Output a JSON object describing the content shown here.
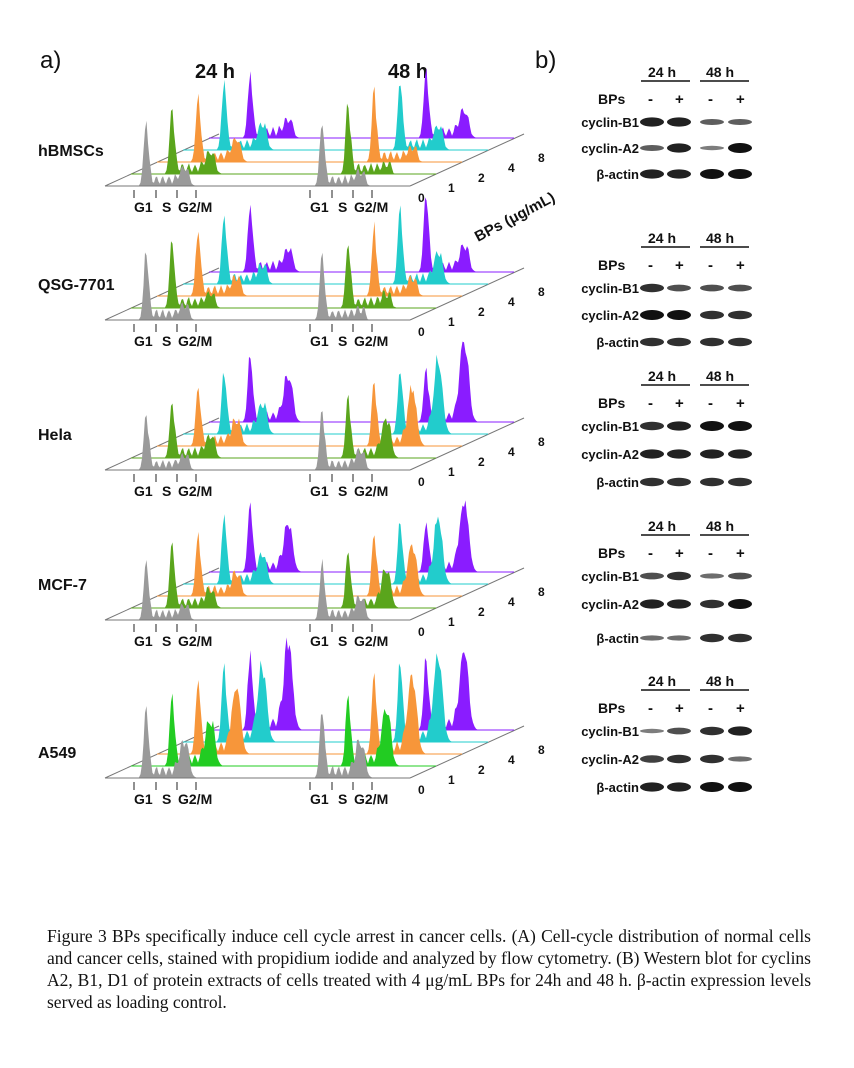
{
  "panel_a": {
    "label": "a)",
    "time_labels": [
      "24 h",
      "48 h"
    ],
    "phase_labels": [
      "G1",
      "S",
      "G2/M"
    ],
    "dose_labels": [
      "0",
      "1",
      "2",
      "4",
      "8"
    ],
    "dose_axis_label": "BPs (μg/mL)",
    "lane_colors": [
      "#9a9a9a",
      "#5aa51c",
      "#f7963a",
      "#22cccc",
      "#8a1cff"
    ],
    "rows": [
      {
        "name": "hBMSCs",
        "g1": {
          "24h": [
            0.75,
            0.8,
            0.75,
            0.8,
            0.75
          ],
          "48h": [
            0.75,
            0.85,
            0.85,
            0.85,
            0.85
          ]
        },
        "g2": {
          "24h": [
            0.15,
            0.2,
            0.2,
            0.25,
            0.15
          ],
          "48h": [
            0.1,
            0.05,
            0.1,
            0.2,
            0.25
          ]
        }
      },
      {
        "name": "QSG-7701",
        "g1": {
          "24h": [
            0.8,
            0.8,
            0.8,
            0.8,
            0.8
          ],
          "48h": [
            0.75,
            0.8,
            0.85,
            0.9,
            0.95
          ]
        },
        "g2": {
          "24h": [
            0.1,
            0.1,
            0.15,
            0.15,
            0.2
          ],
          "48h": [
            0.05,
            0.1,
            0.15,
            0.3,
            0.25
          ]
        }
      },
      {
        "name": "Hela",
        "g1": {
          "24h": [
            0.7,
            0.7,
            0.75,
            0.75,
            0.8
          ],
          "48h": [
            0.75,
            0.75,
            0.8,
            0.8,
            0.6
          ]
        },
        "g2": {
          "24h": [
            0.1,
            0.2,
            0.25,
            0.3,
            0.5
          ],
          "48h": [
            0.15,
            0.4,
            0.6,
            0.8,
            0.9
          ]
        }
      },
      {
        "name": "MCF-7",
        "g1": {
          "24h": [
            0.7,
            0.75,
            0.75,
            0.8,
            0.8
          ],
          "48h": [
            0.7,
            0.7,
            0.75,
            0.75,
            0.6
          ]
        },
        "g2": {
          "24h": [
            0.1,
            0.15,
            0.2,
            0.3,
            0.5
          ],
          "48h": [
            0.2,
            0.4,
            0.55,
            0.7,
            0.8
          ]
        }
      },
      {
        "name": "A549",
        "g1": {
          "24h": [
            0.7,
            0.7,
            0.75,
            0.75,
            0.75
          ],
          "48h": [
            0.7,
            0.75,
            0.8,
            0.8,
            0.75
          ]
        },
        "g2": {
          "24h": [
            0.3,
            0.4,
            0.6,
            0.7,
            0.8
          ],
          "48h": [
            0.3,
            0.5,
            0.75,
            0.8,
            0.7
          ]
        }
      }
    ]
  },
  "panel_b": {
    "label": "b)",
    "time_labels": [
      "24 h",
      "48 h"
    ],
    "treatment_label": "BPs",
    "lane_signs": [
      "-",
      "+",
      "-",
      "+"
    ],
    "band_labels": [
      "cyclin-B1",
      "cyclin-A2",
      "β-actin"
    ],
    "blots": [
      {
        "cyclin-B1": [
          0.9,
          0.9,
          0.5,
          0.5
        ],
        "cyclin-A2": [
          0.5,
          0.9,
          0.3,
          1.0
        ],
        "β-actin": [
          0.9,
          0.9,
          1.0,
          1.0
        ]
      },
      {
        "cyclin-B1": [
          0.8,
          0.6,
          0.6,
          0.6
        ],
        "cyclin-A2": [
          1.0,
          1.0,
          0.8,
          0.8
        ],
        "β-actin": [
          0.8,
          0.8,
          0.8,
          0.8
        ]
      },
      {
        "cyclin-B1": [
          0.8,
          0.9,
          1.0,
          1.0
        ],
        "cyclin-A2": [
          0.9,
          0.9,
          0.9,
          0.9
        ],
        "β-actin": [
          0.8,
          0.8,
          0.8,
          0.8
        ]
      },
      {
        "cyclin-B1": [
          0.6,
          0.8,
          0.4,
          0.6
        ],
        "cyclin-A2": [
          0.9,
          0.9,
          0.8,
          1.0
        ],
        "β-actin": [
          0.4,
          0.4,
          0.8,
          0.8
        ]
      },
      {
        "cyclin-B1": [
          0.3,
          0.6,
          0.8,
          0.9
        ],
        "cyclin-A2": [
          0.7,
          0.8,
          0.8,
          0.4
        ],
        "β-actin": [
          0.9,
          0.9,
          1.0,
          1.0
        ]
      }
    ]
  },
  "caption": "Figure 3 BPs specifically induce cell cycle arrest in cancer cells. (A) Cell-cycle distribution of normal cells and cancer cells, stained with propidium iodide and analyzed by flow cytometry. (B) Western blot for cyclins A2, B1, D1 of protein extracts of cells treated with 4 μg/mL BPs for 24h and 48 h. β-actin expression levels served as loading control."
}
